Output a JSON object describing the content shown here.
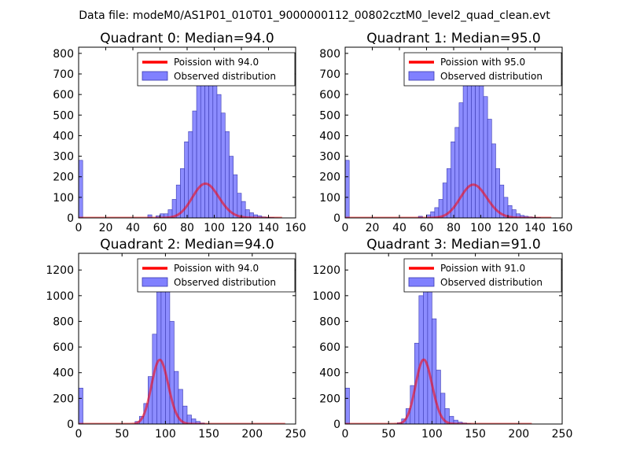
{
  "figure": {
    "suptitle": "Data file: modeM0/AS1P01_010T01_9000000112_00802cztM0_level2_quad_clean.evt"
  },
  "colors": {
    "hist_fill": "#8080ff",
    "hist_edge": "#3a3ab0",
    "poisson_line": "#ff0000",
    "axes": "#000000"
  },
  "chart_data": [
    {
      "type": "bar",
      "title": "Quadrant 0: Median=94.0",
      "xlim": [
        0,
        160
      ],
      "ylim": [
        0,
        830
      ],
      "xticks": [
        0,
        20,
        40,
        60,
        80,
        100,
        120,
        140,
        160
      ],
      "yticks": [
        0,
        100,
        200,
        300,
        400,
        500,
        600,
        700,
        800
      ],
      "legend": {
        "location": "upper right",
        "line_label": "Poission with 94.0",
        "bar_label": "Observed distribution"
      },
      "poisson_mean": 94.0,
      "poisson_scale": 4050,
      "poisson_xmax": 150,
      "bin_width": 3,
      "bins_start": [
        0,
        51,
        57,
        60,
        63,
        66,
        69,
        72,
        75,
        78,
        81,
        84,
        87,
        90,
        93,
        96,
        99,
        102,
        105,
        108,
        111,
        114,
        117,
        120,
        123,
        126,
        129,
        132,
        135,
        138,
        141,
        144
      ],
      "counts": [
        280,
        15,
        10,
        20,
        20,
        40,
        90,
        160,
        240,
        370,
        420,
        520,
        650,
        720,
        740,
        680,
        670,
        600,
        510,
        420,
        300,
        210,
        120,
        80,
        40,
        25,
        15,
        10,
        5,
        3,
        2,
        1
      ]
    },
    {
      "type": "bar",
      "title": "Quadrant 1: Median=95.0",
      "xlim": [
        0,
        160
      ],
      "ylim": [
        0,
        830
      ],
      "xticks": [
        0,
        20,
        40,
        60,
        80,
        100,
        120,
        140,
        160
      ],
      "yticks": [
        0,
        100,
        200,
        300,
        400,
        500,
        600,
        700,
        800
      ],
      "legend": {
        "location": "upper right",
        "line_label": "Poission with 95.0",
        "bar_label": "Observed distribution"
      },
      "poisson_mean": 95.0,
      "poisson_scale": 3950,
      "poisson_xmax": 152,
      "bin_width": 3,
      "bins_start": [
        0,
        54,
        60,
        63,
        66,
        69,
        72,
        75,
        78,
        81,
        84,
        87,
        90,
        93,
        96,
        99,
        102,
        105,
        108,
        111,
        114,
        117,
        120,
        123,
        126,
        129,
        132,
        135,
        138,
        141
      ],
      "counts": [
        280,
        8,
        15,
        30,
        50,
        90,
        170,
        240,
        370,
        440,
        560,
        660,
        730,
        700,
        760,
        720,
        590,
        480,
        360,
        240,
        160,
        100,
        60,
        40,
        20,
        12,
        8,
        5,
        3,
        2
      ]
    },
    {
      "type": "bar",
      "title": "Quadrant 2: Median=94.0",
      "xlim": [
        0,
        250
      ],
      "ylim": [
        0,
        1330
      ],
      "xticks": [
        0,
        50,
        100,
        150,
        200,
        250
      ],
      "yticks": [
        0,
        200,
        400,
        600,
        800,
        1000,
        1200
      ],
      "legend": {
        "location": "upper right",
        "line_label": "Poission with 94.0",
        "bar_label": "Observed distribution"
      },
      "poisson_mean": 94.0,
      "poisson_scale": 12150,
      "poisson_xmax": 238,
      "bin_width": 5,
      "bins_start": [
        0,
        65,
        70,
        75,
        80,
        85,
        90,
        95,
        100,
        105,
        110,
        115,
        120,
        125,
        130,
        135,
        140
      ],
      "counts": [
        280,
        20,
        60,
        160,
        370,
        700,
        1100,
        1250,
        1100,
        800,
        410,
        270,
        140,
        70,
        40,
        20,
        8
      ]
    },
    {
      "type": "bar",
      "title": "Quadrant 3: Median=91.0",
      "xlim": [
        0,
        250
      ],
      "ylim": [
        0,
        1330
      ],
      "xticks": [
        0,
        50,
        100,
        150,
        200,
        250
      ],
      "yticks": [
        0,
        200,
        400,
        600,
        800,
        1000,
        1200
      ],
      "legend": {
        "location": "upper right",
        "line_label": "Poission with 91.0",
        "bar_label": "Observed distribution"
      },
      "poisson_mean": 91.0,
      "poisson_scale": 12000,
      "poisson_xmax": 215,
      "bin_width": 5,
      "bins_start": [
        0,
        60,
        65,
        70,
        75,
        80,
        85,
        90,
        95,
        100,
        105,
        110,
        115,
        120,
        125,
        130,
        135,
        140
      ],
      "counts": [
        280,
        10,
        40,
        120,
        300,
        630,
        1000,
        1200,
        1100,
        820,
        420,
        240,
        120,
        60,
        30,
        15,
        8,
        3
      ]
    }
  ]
}
